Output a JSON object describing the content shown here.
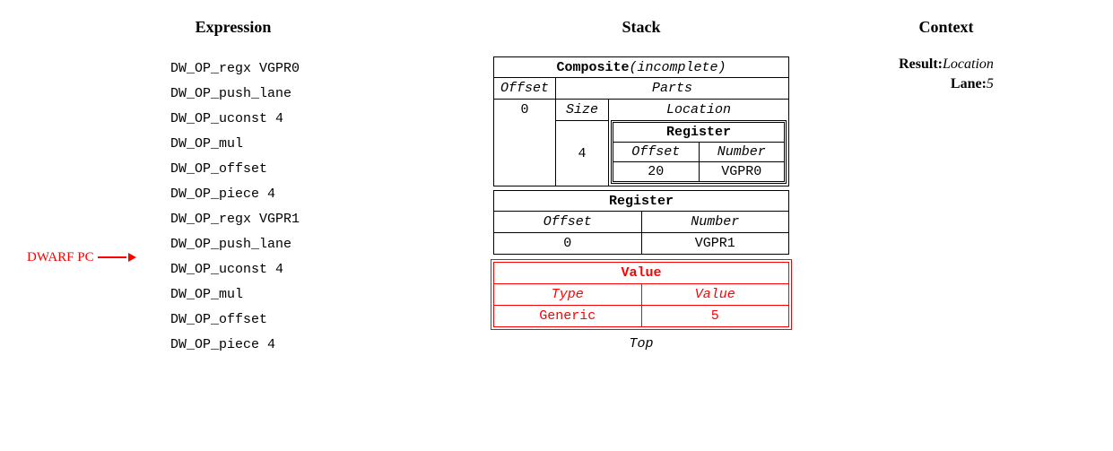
{
  "headings": {
    "expression": "Expression",
    "stack": "Stack",
    "context": "Context"
  },
  "expression": {
    "lines": [
      "DW_OP_regx VGPR0",
      "DW_OP_push_lane",
      "DW_OP_uconst 4",
      "DW_OP_mul",
      "DW_OP_offset",
      "DW_OP_piece 4",
      "DW_OP_regx VGPR1",
      "DW_OP_push_lane",
      "DW_OP_uconst 4",
      "DW_OP_mul",
      "DW_OP_offset",
      "DW_OP_piece 4"
    ],
    "pc_label": "DWARF PC",
    "pc_index": 8
  },
  "stack": {
    "composite": {
      "title": "Composite",
      "note": "(incomplete)",
      "offset_label": "Offset",
      "offset_value": "0",
      "parts_label": "Parts",
      "size_label": "Size",
      "size_value": "4",
      "location_label": "Location",
      "inner_register": {
        "title": "Register",
        "offset_label": "Offset",
        "number_label": "Number",
        "offset_value": "20",
        "number_value": "VGPR0"
      }
    },
    "register": {
      "title": "Register",
      "offset_label": "Offset",
      "number_label": "Number",
      "offset_value": "0",
      "number_value": "VGPR1"
    },
    "value": {
      "title": "Value",
      "type_label": "Type",
      "value_label": "Value",
      "type_value": "Generic",
      "value_value": "5"
    },
    "top_label": "Top"
  },
  "context": {
    "result_key": "Result:",
    "result_val": "Location",
    "lane_key": "Lane:",
    "lane_val": "5"
  },
  "style": {
    "highlight_color": "#ff0000",
    "text_color": "#000000",
    "bg_color": "#ffffff"
  }
}
